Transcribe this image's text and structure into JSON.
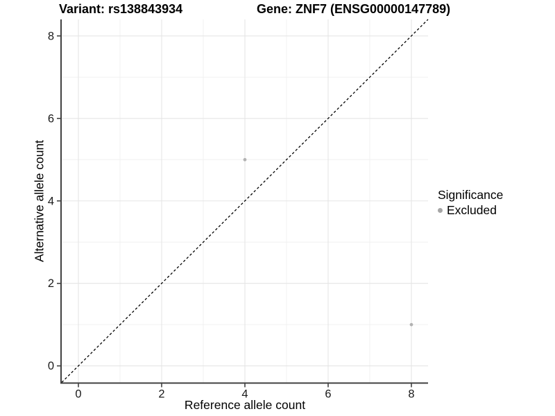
{
  "figure": {
    "title_variant": "Variant: rs138843934",
    "title_gene": "Gene: ZNF7 (ENSG00000147789)"
  },
  "chart_data": {
    "type": "scatter",
    "xlabel": "Reference allele count",
    "ylabel": "Alternative allele count",
    "xlim": [
      -0.4,
      8.4
    ],
    "ylim": [
      -0.4,
      8.4
    ],
    "x_ticks": [
      0,
      2,
      4,
      6,
      8
    ],
    "y_ticks": [
      0,
      2,
      4,
      6,
      8
    ],
    "x_minor": [
      1,
      3,
      5,
      7
    ],
    "y_minor": [
      1,
      3,
      5,
      7
    ],
    "grid": true,
    "series": [
      {
        "name": "Excluded",
        "color": "#b2b2b2",
        "point_radius": 2.4,
        "points": [
          {
            "x": 4,
            "y": 5
          },
          {
            "x": 8,
            "y": 1
          }
        ]
      }
    ],
    "abline": {
      "slope": 1,
      "intercept": 0,
      "linestyle": "dashed",
      "color": "#000000"
    },
    "legend": {
      "title": "Significance",
      "position": "right",
      "items": [
        {
          "label": "Excluded",
          "color": "#a6a6a6"
        }
      ]
    },
    "style": {
      "grid_major_color": "#e5e5e5",
      "grid_minor_color": "#f0f0f0",
      "axis_line_color": "#404040",
      "tick_label_color": "#1a1a1a",
      "background": "#ffffff"
    }
  }
}
